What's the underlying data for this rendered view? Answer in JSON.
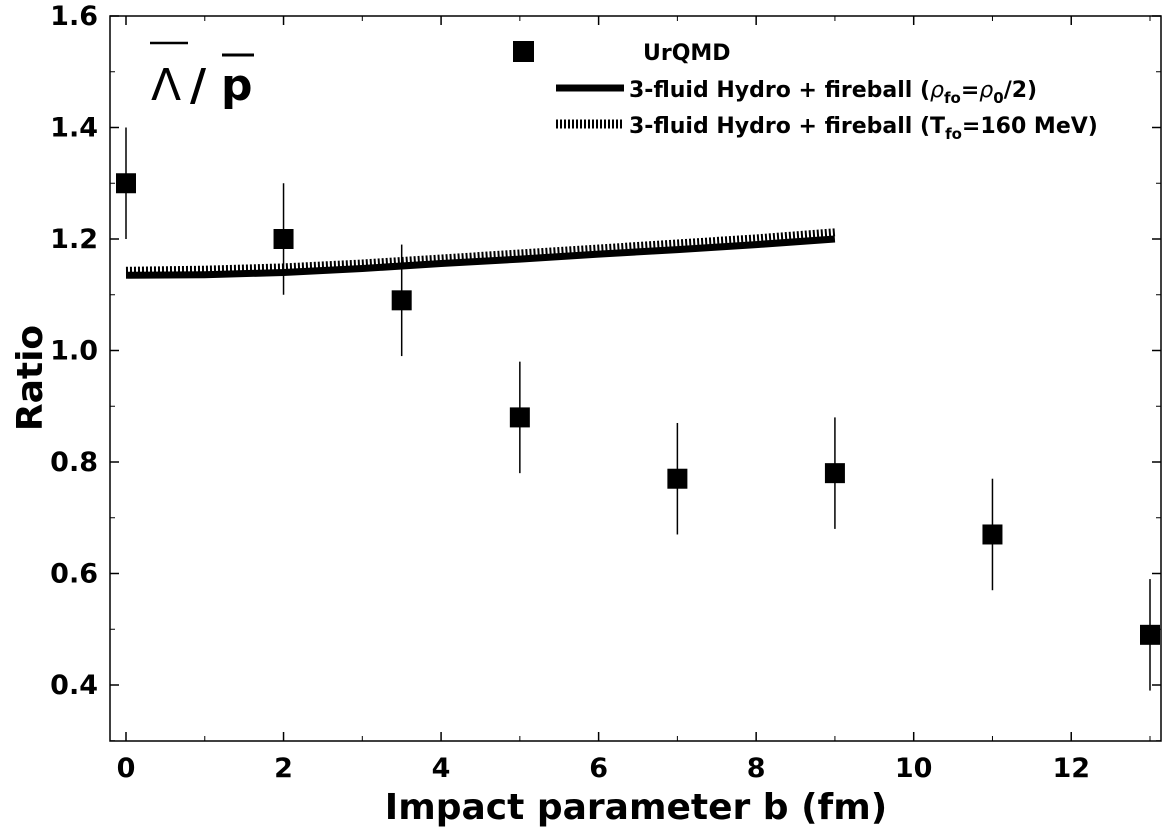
{
  "chart_data": {
    "type": "scatter",
    "title": "Λ̄/p̄",
    "title_parts": {
      "numerator": "Λ",
      "slash": "/",
      "denominator": "p"
    },
    "xlabel": "Impact parameter b (fm)",
    "ylabel": "Ratio",
    "xlim": [
      -0.2,
      13.2
    ],
    "ylim": [
      0.3,
      1.6
    ],
    "x_ticks": [
      0,
      2,
      4,
      6,
      8,
      10,
      12
    ],
    "x_tick_labels": [
      "0",
      "2",
      "4",
      "6",
      "8",
      "10",
      "12"
    ],
    "y_ticks": [
      0.4,
      0.6,
      0.8,
      1.0,
      1.2,
      1.4,
      1.6
    ],
    "y_tick_labels": [
      "0.4",
      "0.6",
      "0.8",
      "1.0",
      "1.2",
      "1.4",
      "1.6"
    ],
    "grid": false,
    "legend_position": "top-right",
    "series": [
      {
        "name": "UrQMD",
        "style": "square-markers-with-error-bars",
        "color": "#000000",
        "x": [
          0,
          2,
          3.5,
          5,
          7,
          9,
          11,
          13
        ],
        "y": [
          1.3,
          1.2,
          1.09,
          0.88,
          0.77,
          0.78,
          0.67,
          0.49
        ],
        "yerr": [
          0.1,
          0.1,
          0.1,
          0.1,
          0.1,
          0.1,
          0.1,
          0.1
        ]
      },
      {
        "name": "3-fluid Hydro + fireball (ρfo=ρ0/2)",
        "style": "thick-solid-line",
        "color": "#000000",
        "x": [
          0,
          1,
          2,
          3,
          4,
          5,
          6,
          7,
          8,
          9
        ],
        "y": [
          1.135,
          1.136,
          1.14,
          1.147,
          1.156,
          1.164,
          1.173,
          1.181,
          1.19,
          1.2
        ]
      },
      {
        "name": "3-fluid Hydro + fireball (Tfo=160 MeV)",
        "style": "hatched-line",
        "color": "#000000",
        "x": [
          0,
          1,
          2,
          3,
          4,
          5,
          6,
          7,
          8,
          9
        ],
        "y": [
          1.143,
          1.145,
          1.149,
          1.156,
          1.165,
          1.174,
          1.183,
          1.192,
          1.201,
          1.212
        ]
      }
    ]
  },
  "legend": {
    "items": [
      {
        "label_main": "UrQMD"
      },
      {
        "label_main": "3-fluid Hydro + fireball (",
        "sym1": "ρ",
        "sub1": "fo",
        "eq": "=",
        "sym2": "ρ",
        "sub2": "0",
        "tail": "/2)"
      },
      {
        "label_main": "3-fluid Hydro + fireball (",
        "sym1": "T",
        "sub1": "fo",
        "tail": "=160 MeV)"
      }
    ]
  }
}
